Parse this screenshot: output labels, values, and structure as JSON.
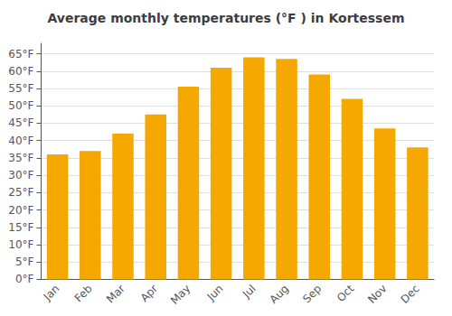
{
  "chart_data": {
    "type": "bar",
    "title": "Average monthly temperatures (°F ) in Kortessem",
    "categories": [
      "Jan",
      "Feb",
      "Mar",
      "Apr",
      "May",
      "Jun",
      "Jul",
      "Aug",
      "Sep",
      "Oct",
      "Nov",
      "Dec"
    ],
    "values": [
      36,
      37,
      42,
      47.5,
      55.5,
      61,
      64,
      63.5,
      59,
      52,
      43.5,
      38
    ],
    "color": "#F5A800",
    "ylim": [
      0,
      68
    ],
    "yticks": [
      {
        "value": 0,
        "label": "0°F"
      },
      {
        "value": 5,
        "label": "5°F"
      },
      {
        "value": 10,
        "label": "10°F"
      },
      {
        "value": 15,
        "label": "15°F"
      },
      {
        "value": 20,
        "label": "20°F"
      },
      {
        "value": 25,
        "label": "25°F"
      },
      {
        "value": 30,
        "label": "30°F"
      },
      {
        "value": 35,
        "label": "35°F"
      },
      {
        "value": 40,
        "label": "40°F"
      },
      {
        "value": 45,
        "label": "45°F"
      },
      {
        "value": 50,
        "label": "50°F"
      },
      {
        "value": 55,
        "label": "55°F"
      },
      {
        "value": 60,
        "label": "60°F"
      },
      {
        "value": 65,
        "label": "65°F"
      }
    ],
    "grid": true
  }
}
